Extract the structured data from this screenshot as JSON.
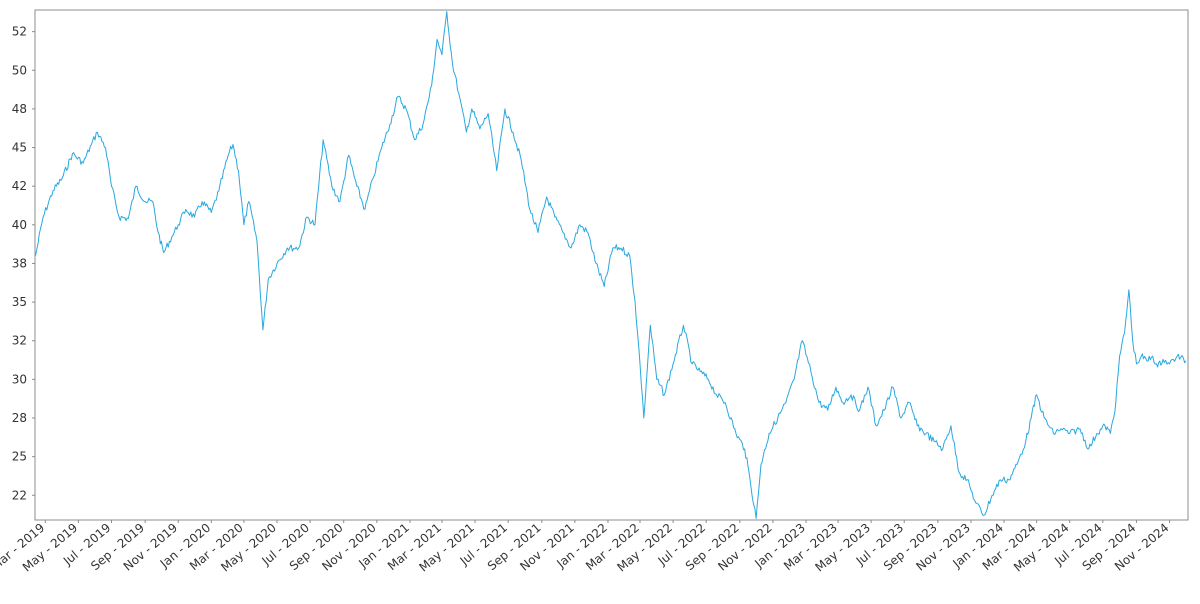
{
  "chart_data": {
    "type": "line",
    "title": "",
    "xlabel": "",
    "ylabel": "",
    "grid": false,
    "legend": "none",
    "line_color": "#29a8df",
    "x_range": [
      "2019-02-10",
      "2024-12-05"
    ],
    "ylim": [
      20.9,
      53.9
    ],
    "y_ticks": [
      {
        "value": 22.5,
        "label": "22"
      },
      {
        "value": 25.0,
        "label": "25"
      },
      {
        "value": 27.5,
        "label": "28"
      },
      {
        "value": 30.0,
        "label": "30"
      },
      {
        "value": 32.5,
        "label": "32"
      },
      {
        "value": 35.0,
        "label": "35"
      },
      {
        "value": 37.5,
        "label": "38"
      },
      {
        "value": 40.0,
        "label": "40"
      },
      {
        "value": 42.5,
        "label": "42"
      },
      {
        "value": 45.0,
        "label": "45"
      },
      {
        "value": 47.5,
        "label": "48"
      },
      {
        "value": 50.0,
        "label": "50"
      },
      {
        "value": 52.5,
        "label": "52"
      }
    ],
    "x_ticks": [
      {
        "date": "2019-03-01",
        "label": "Mar - 2019"
      },
      {
        "date": "2019-05-01",
        "label": "May - 2019"
      },
      {
        "date": "2019-07-01",
        "label": "Jul - 2019"
      },
      {
        "date": "2019-09-01",
        "label": "Sep - 2019"
      },
      {
        "date": "2019-11-01",
        "label": "Nov - 2019"
      },
      {
        "date": "2020-01-01",
        "label": "Jan - 2020"
      },
      {
        "date": "2020-03-01",
        "label": "Mar - 2020"
      },
      {
        "date": "2020-05-01",
        "label": "May - 2020"
      },
      {
        "date": "2020-07-01",
        "label": "Jul - 2020"
      },
      {
        "date": "2020-09-01",
        "label": "Sep - 2020"
      },
      {
        "date": "2020-11-01",
        "label": "Nov - 2020"
      },
      {
        "date": "2021-01-01",
        "label": "Jan - 2021"
      },
      {
        "date": "2021-03-01",
        "label": "Mar - 2021"
      },
      {
        "date": "2021-05-01",
        "label": "May - 2021"
      },
      {
        "date": "2021-07-01",
        "label": "Jul - 2021"
      },
      {
        "date": "2021-09-01",
        "label": "Sep - 2021"
      },
      {
        "date": "2021-11-01",
        "label": "Nov - 2021"
      },
      {
        "date": "2022-01-01",
        "label": "Jan - 2022"
      },
      {
        "date": "2022-03-01",
        "label": "Mar - 2022"
      },
      {
        "date": "2022-05-01",
        "label": "May - 2022"
      },
      {
        "date": "2022-07-01",
        "label": "Jul - 2022"
      },
      {
        "date": "2022-09-01",
        "label": "Sep - 2022"
      },
      {
        "date": "2022-11-01",
        "label": "Nov - 2022"
      },
      {
        "date": "2023-01-01",
        "label": "Jan - 2023"
      },
      {
        "date": "2023-03-01",
        "label": "Mar - 2023"
      },
      {
        "date": "2023-05-01",
        "label": "May - 2023"
      },
      {
        "date": "2023-07-01",
        "label": "Jul - 2023"
      },
      {
        "date": "2023-09-01",
        "label": "Sep - 2023"
      },
      {
        "date": "2023-11-01",
        "label": "Nov - 2023"
      },
      {
        "date": "2024-01-01",
        "label": "Jan - 2024"
      },
      {
        "date": "2024-03-01",
        "label": "Mar - 2024"
      },
      {
        "date": "2024-05-01",
        "label": "May - 2024"
      },
      {
        "date": "2024-07-01",
        "label": "Jul - 2024"
      },
      {
        "date": "2024-09-01",
        "label": "Sep - 2024"
      },
      {
        "date": "2024-11-01",
        "label": "Nov - 2024"
      }
    ],
    "series": [
      {
        "values": [
          [
            "2019-02-11",
            38.0
          ],
          [
            "2019-02-25",
            40.5
          ],
          [
            "2019-03-15",
            42.2
          ],
          [
            "2019-04-01",
            43.0
          ],
          [
            "2019-04-20",
            44.6
          ],
          [
            "2019-05-10",
            44.0
          ],
          [
            "2019-05-25",
            45.2
          ],
          [
            "2019-06-05",
            46.0
          ],
          [
            "2019-06-20",
            45.0
          ],
          [
            "2019-07-01",
            42.5
          ],
          [
            "2019-07-15",
            40.5
          ],
          [
            "2019-08-01",
            40.4
          ],
          [
            "2019-08-15",
            42.5
          ],
          [
            "2019-09-01",
            41.5
          ],
          [
            "2019-09-15",
            41.5
          ],
          [
            "2019-09-25",
            39.5
          ],
          [
            "2019-10-05",
            38.2
          ],
          [
            "2019-10-20",
            39.2
          ],
          [
            "2019-11-01",
            40.0
          ],
          [
            "2019-11-15",
            41.0
          ],
          [
            "2019-12-01",
            40.5
          ],
          [
            "2019-12-15",
            41.5
          ],
          [
            "2020-01-01",
            40.8
          ],
          [
            "2020-01-15",
            42.2
          ],
          [
            "2020-02-01",
            44.5
          ],
          [
            "2020-02-10",
            45.2
          ],
          [
            "2020-02-20",
            43.5
          ],
          [
            "2020-03-01",
            40.0
          ],
          [
            "2020-03-10",
            41.5
          ],
          [
            "2020-03-25",
            39.0
          ],
          [
            "2020-04-05",
            33.2
          ],
          [
            "2020-04-15",
            36.5
          ],
          [
            "2020-05-01",
            37.5
          ],
          [
            "2020-05-20",
            38.5
          ],
          [
            "2020-06-10",
            38.5
          ],
          [
            "2020-06-25",
            40.5
          ],
          [
            "2020-07-10",
            40.0
          ],
          [
            "2020-07-25",
            45.5
          ],
          [
            "2020-08-10",
            42.5
          ],
          [
            "2020-08-25",
            41.5
          ],
          [
            "2020-09-10",
            44.5
          ],
          [
            "2020-09-25",
            42.5
          ],
          [
            "2020-10-10",
            41.0
          ],
          [
            "2020-10-25",
            43.0
          ],
          [
            "2020-11-10",
            45.0
          ],
          [
            "2020-11-25",
            46.5
          ],
          [
            "2020-12-10",
            48.3
          ],
          [
            "2020-12-25",
            47.5
          ],
          [
            "2021-01-10",
            45.5
          ],
          [
            "2021-01-25",
            46.5
          ],
          [
            "2021-02-10",
            49.0
          ],
          [
            "2021-02-20",
            52.0
          ],
          [
            "2021-03-01",
            51.0
          ],
          [
            "2021-03-10",
            53.8
          ],
          [
            "2021-03-20",
            50.5
          ],
          [
            "2021-04-01",
            48.5
          ],
          [
            "2021-04-15",
            46.0
          ],
          [
            "2021-04-25",
            47.5
          ],
          [
            "2021-05-10",
            46.2
          ],
          [
            "2021-05-25",
            47.2
          ],
          [
            "2021-06-10",
            43.5
          ],
          [
            "2021-06-25",
            47.5
          ],
          [
            "2021-07-10",
            46.0
          ],
          [
            "2021-07-25",
            44.2
          ],
          [
            "2021-08-10",
            41.0
          ],
          [
            "2021-08-25",
            39.5
          ],
          [
            "2021-09-10",
            41.8
          ],
          [
            "2021-09-25",
            40.5
          ],
          [
            "2021-10-10",
            39.5
          ],
          [
            "2021-10-25",
            38.5
          ],
          [
            "2021-11-10",
            40.0
          ],
          [
            "2021-11-25",
            39.5
          ],
          [
            "2021-12-10",
            37.5
          ],
          [
            "2021-12-25",
            36.0
          ],
          [
            "2022-01-10",
            38.5
          ],
          [
            "2022-01-25",
            38.5
          ],
          [
            "2022-02-10",
            38.0
          ],
          [
            "2022-02-20",
            35.0
          ],
          [
            "2022-03-01",
            31.0
          ],
          [
            "2022-03-08",
            27.5
          ],
          [
            "2022-03-20",
            33.5
          ],
          [
            "2022-04-01",
            30.0
          ],
          [
            "2022-04-15",
            29.0
          ],
          [
            "2022-05-01",
            31.0
          ],
          [
            "2022-05-20",
            33.5
          ],
          [
            "2022-06-05",
            31.0
          ],
          [
            "2022-06-20",
            30.5
          ],
          [
            "2022-07-05",
            30.0
          ],
          [
            "2022-07-20",
            29.0
          ],
          [
            "2022-08-05",
            28.5
          ],
          [
            "2022-08-25",
            26.5
          ],
          [
            "2022-09-10",
            25.5
          ],
          [
            "2022-09-20",
            23.5
          ],
          [
            "2022-10-01",
            21.0
          ],
          [
            "2022-10-10",
            24.5
          ],
          [
            "2022-10-25",
            26.5
          ],
          [
            "2022-11-10",
            27.5
          ],
          [
            "2022-11-25",
            28.5
          ],
          [
            "2022-12-10",
            30.0
          ],
          [
            "2022-12-25",
            32.5
          ],
          [
            "2023-01-10",
            30.5
          ],
          [
            "2023-01-25",
            28.5
          ],
          [
            "2023-02-10",
            28.0
          ],
          [
            "2023-02-25",
            29.5
          ],
          [
            "2023-03-10",
            28.5
          ],
          [
            "2023-03-25",
            29.0
          ],
          [
            "2023-04-10",
            28.0
          ],
          [
            "2023-04-25",
            29.5
          ],
          [
            "2023-05-10",
            27.0
          ],
          [
            "2023-05-25",
            28.0
          ],
          [
            "2023-06-10",
            29.5
          ],
          [
            "2023-06-25",
            27.5
          ],
          [
            "2023-07-10",
            28.5
          ],
          [
            "2023-07-25",
            27.0
          ],
          [
            "2023-08-10",
            26.5
          ],
          [
            "2023-08-25",
            26.0
          ],
          [
            "2023-09-10",
            25.5
          ],
          [
            "2023-09-25",
            27.0
          ],
          [
            "2023-10-10",
            24.0
          ],
          [
            "2023-10-25",
            23.5
          ],
          [
            "2023-11-10",
            22.0
          ],
          [
            "2023-11-25",
            21.2
          ],
          [
            "2023-12-10",
            22.5
          ],
          [
            "2023-12-25",
            23.5
          ],
          [
            "2024-01-10",
            23.5
          ],
          [
            "2024-01-25",
            24.5
          ],
          [
            "2024-02-10",
            26.0
          ],
          [
            "2024-02-20",
            27.5
          ],
          [
            "2024-03-01",
            29.0
          ],
          [
            "2024-03-15",
            27.5
          ],
          [
            "2024-04-01",
            26.5
          ],
          [
            "2024-04-15",
            26.8
          ],
          [
            "2024-05-01",
            26.5
          ],
          [
            "2024-05-20",
            26.8
          ],
          [
            "2024-06-05",
            25.5
          ],
          [
            "2024-06-20",
            26.5
          ],
          [
            "2024-07-05",
            27.0
          ],
          [
            "2024-07-15",
            26.5
          ],
          [
            "2024-07-25",
            28.5
          ],
          [
            "2024-08-01",
            31.5
          ],
          [
            "2024-08-10",
            33.0
          ],
          [
            "2024-08-18",
            35.8
          ],
          [
            "2024-08-25",
            32.5
          ],
          [
            "2024-09-01",
            31.0
          ],
          [
            "2024-09-10",
            31.5
          ],
          [
            "2024-09-20",
            31.2
          ],
          [
            "2024-10-01",
            31.5
          ],
          [
            "2024-10-10",
            30.8
          ],
          [
            "2024-10-20",
            31.3
          ],
          [
            "2024-11-01",
            31.0
          ],
          [
            "2024-11-15",
            31.5
          ],
          [
            "2024-12-01",
            31.2
          ]
        ]
      }
    ]
  }
}
